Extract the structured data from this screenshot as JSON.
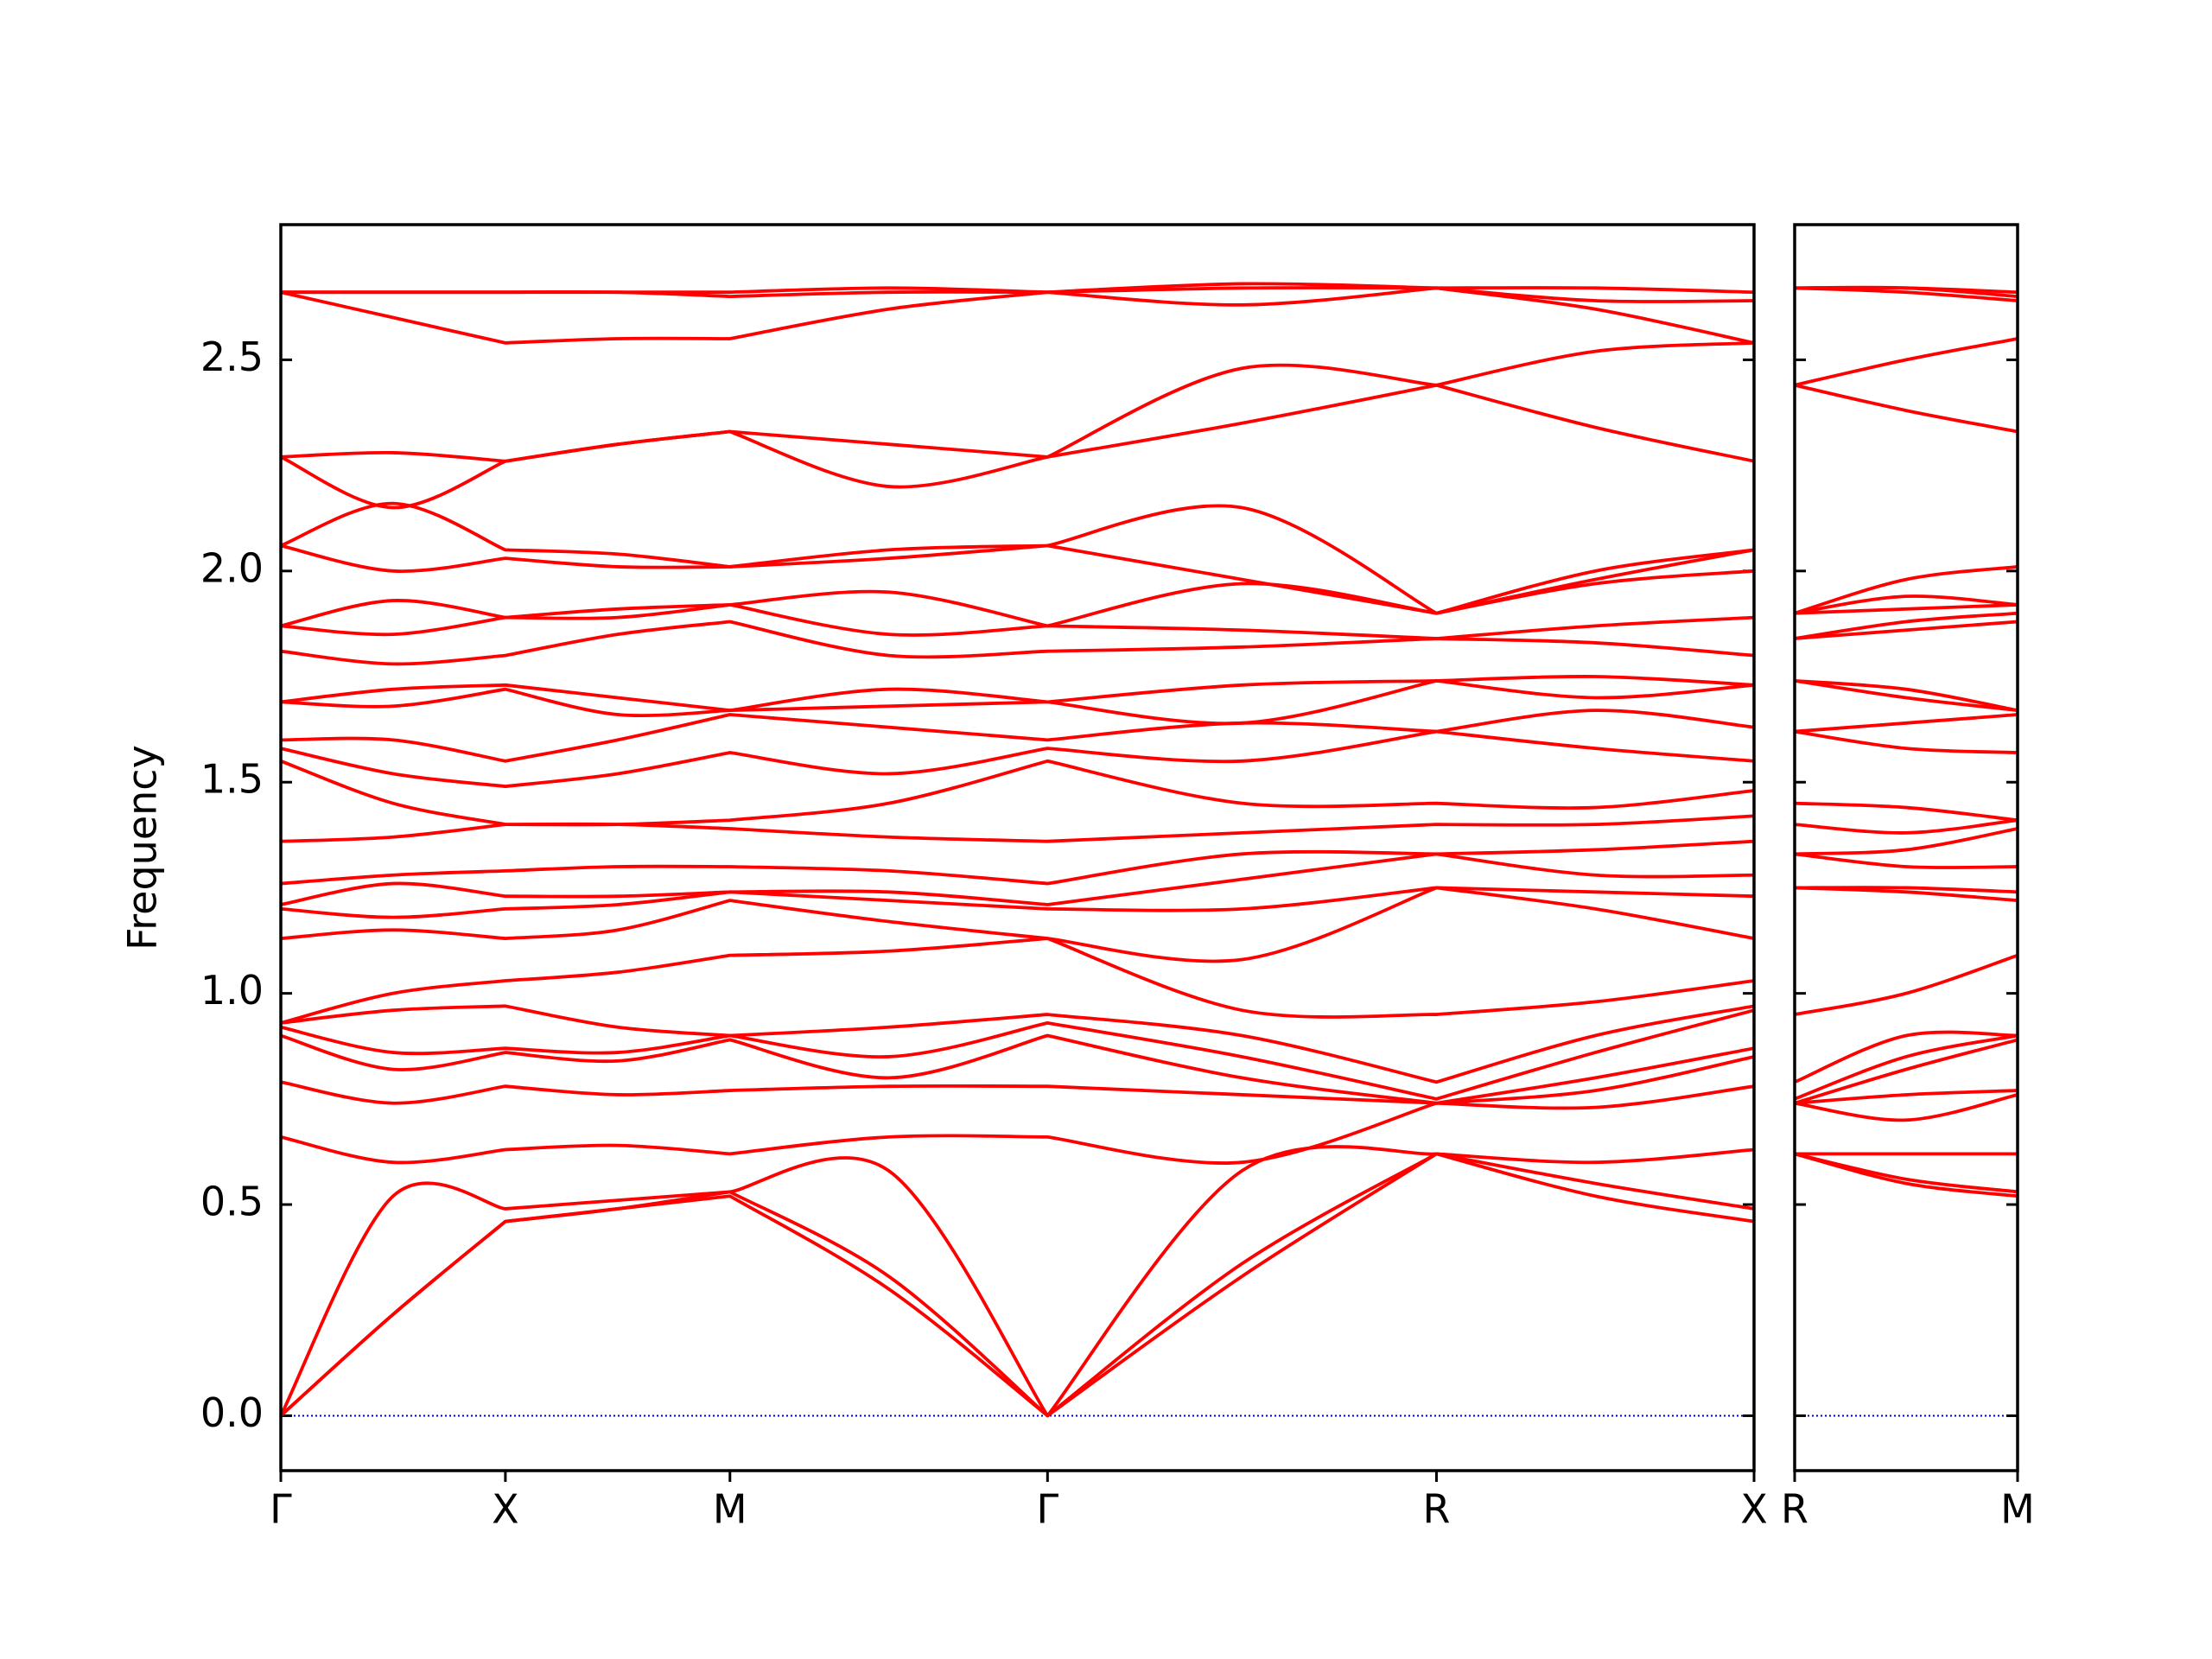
{
  "chart_data": [
    {
      "type": "line",
      "ylabel": "Frequency",
      "color": "#ff0000",
      "hline": 0,
      "hline_color": "#0000cd",
      "x": [
        0,
        0.25,
        0.5,
        0.75,
        1.0,
        1.3536,
        1.7071,
        2.1401,
        2.5731,
        2.9267,
        3.2802
      ],
      "xlim": [
        0,
        3.2802
      ],
      "xticks": [
        {
          "value": 0,
          "label": "Γ"
        },
        {
          "value": 0.5,
          "label": "X"
        },
        {
          "value": 1.0,
          "label": "M"
        },
        {
          "value": 1.7071,
          "label": "Γ"
        },
        {
          "value": 2.5731,
          "label": "R"
        },
        {
          "value": 3.2802,
          "label": "X"
        }
      ],
      "ylim": [
        -0.13,
        2.82
      ],
      "yticks": [
        {
          "value": 0,
          "label": "0.0"
        },
        0.5,
        {
          "value": 1,
          "label": "1.0"
        },
        1.5,
        {
          "value": 2,
          "label": "2.0"
        },
        2.5
      ],
      "series": [
        {
          "values": [
            0,
            0.24,
            0.46,
            0.49,
            0.52,
            0.3,
            0,
            0.33,
            0.62,
            0.52,
            0.46
          ]
        },
        {
          "values": [
            0,
            0.24,
            0.46,
            0.49,
            0.53,
            0.33,
            0,
            0.36,
            0.62,
            0.55,
            0.49
          ]
        },
        {
          "values": [
            0,
            0.52,
            0.49,
            0.51,
            0.53,
            0.58,
            0,
            0.58,
            0.62,
            0.6,
            0.63
          ]
        },
        {
          "values": [
            0.66,
            0.6,
            0.63,
            0.64,
            0.62,
            0.66,
            0.66,
            0.6,
            0.74,
            0.73,
            0.78
          ]
        },
        {
          "values": [
            0.79,
            0.74,
            0.78,
            0.76,
            0.77,
            0.78,
            0.78,
            0.76,
            0.74,
            0.77,
            0.85
          ]
        },
        {
          "values": [
            0.9,
            0.82,
            0.86,
            0.84,
            0.89,
            0.8,
            0.9,
            0.8,
            0.74,
            0.8,
            0.87
          ]
        },
        {
          "values": [
            0.92,
            0.86,
            0.87,
            0.86,
            0.9,
            0.85,
            0.93,
            0.85,
            0.75,
            0.86,
            0.96
          ]
        },
        {
          "values": [
            0.93,
            0.96,
            0.97,
            0.92,
            0.9,
            0.92,
            0.95,
            0.9,
            0.79,
            0.9,
            0.97
          ]
        },
        {
          "values": [
            0.93,
            1.0,
            1.03,
            1.05,
            1.09,
            1.1,
            1.13,
            0.96,
            0.95,
            0.98,
            1.03
          ]
        },
        {
          "values": [
            1.13,
            1.15,
            1.13,
            1.15,
            1.22,
            1.17,
            1.13,
            1.08,
            1.25,
            1.2,
            1.13
          ]
        },
        {
          "values": [
            1.2,
            1.18,
            1.2,
            1.21,
            1.24,
            1.22,
            1.2,
            1.2,
            1.25,
            1.24,
            1.23
          ]
        },
        {
          "values": [
            1.21,
            1.26,
            1.23,
            1.23,
            1.24,
            1.24,
            1.21,
            1.27,
            1.33,
            1.28,
            1.28
          ]
        },
        {
          "values": [
            1.26,
            1.28,
            1.29,
            1.3,
            1.3,
            1.29,
            1.26,
            1.33,
            1.33,
            1.34,
            1.36
          ]
        },
        {
          "values": [
            1.36,
            1.37,
            1.4,
            1.4,
            1.39,
            1.37,
            1.36,
            1.38,
            1.4,
            1.4,
            1.42
          ]
        },
        {
          "values": [
            1.55,
            1.45,
            1.4,
            1.4,
            1.41,
            1.45,
            1.55,
            1.45,
            1.45,
            1.44,
            1.48
          ]
        },
        {
          "values": [
            1.58,
            1.52,
            1.49,
            1.52,
            1.57,
            1.52,
            1.58,
            1.55,
            1.62,
            1.58,
            1.55
          ]
        },
        {
          "values": [
            1.6,
            1.6,
            1.55,
            1.6,
            1.66,
            1.63,
            1.6,
            1.64,
            1.62,
            1.67,
            1.63
          ]
        },
        {
          "values": [
            1.69,
            1.68,
            1.72,
            1.66,
            1.67,
            1.68,
            1.69,
            1.64,
            1.74,
            1.7,
            1.73
          ]
        },
        {
          "values": [
            1.69,
            1.72,
            1.73,
            1.7,
            1.67,
            1.72,
            1.69,
            1.73,
            1.74,
            1.75,
            1.73
          ]
        },
        {
          "values": [
            1.81,
            1.78,
            1.8,
            1.85,
            1.88,
            1.8,
            1.81,
            1.82,
            1.84,
            1.83,
            1.8
          ]
        },
        {
          "values": [
            1.87,
            1.85,
            1.89,
            1.89,
            1.92,
            1.85,
            1.87,
            1.86,
            1.84,
            1.87,
            1.89
          ]
        },
        {
          "values": [
            1.87,
            1.93,
            1.89,
            1.91,
            1.92,
            1.95,
            1.87,
            1.97,
            1.9,
            1.97,
            2.0
          ]
        },
        {
          "values": [
            2.06,
            2.0,
            2.03,
            2.01,
            2.01,
            2.03,
            2.06,
            1.98,
            1.9,
            1.98,
            2.05
          ]
        },
        {
          "values": [
            2.06,
            2.16,
            2.05,
            2.04,
            2.01,
            2.05,
            2.06,
            2.15,
            1.9,
            2.0,
            2.05
          ]
        },
        {
          "values": [
            2.27,
            2.15,
            2.26,
            2.3,
            2.33,
            2.2,
            2.27,
            2.35,
            2.44,
            2.52,
            2.54
          ]
        },
        {
          "values": [
            2.27,
            2.28,
            2.26,
            2.3,
            2.33,
            2.3,
            2.27,
            2.48,
            2.44,
            2.34,
            2.26
          ]
        },
        {
          "values": [
            2.66,
            2.6,
            2.54,
            2.55,
            2.55,
            2.62,
            2.66,
            2.63,
            2.67,
            2.62,
            2.54
          ]
        },
        {
          "values": [
            2.66,
            2.66,
            2.66,
            2.66,
            2.65,
            2.66,
            2.66,
            2.67,
            2.67,
            2.64,
            2.64
          ]
        },
        {
          "values": [
            2.66,
            2.66,
            2.66,
            2.66,
            2.66,
            2.67,
            2.66,
            2.68,
            2.67,
            2.67,
            2.66
          ]
        }
      ]
    },
    {
      "type": "line",
      "color": "#ff0000",
      "hline": 0,
      "hline_color": "#0000cd",
      "x": [
        0,
        0.3536,
        0.7071
      ],
      "xlim": [
        0,
        0.7071
      ],
      "xticks": [
        {
          "value": 0,
          "label": "R"
        },
        {
          "value": 0.7071,
          "label": "M"
        }
      ],
      "ylim": [
        -0.13,
        2.82
      ],
      "yticks": [
        0,
        0.5,
        1,
        1.5,
        2,
        2.5
      ],
      "series": [
        {
          "values": [
            0.62,
            0.55,
            0.52
          ]
        },
        {
          "values": [
            0.62,
            0.56,
            0.53
          ]
        },
        {
          "values": [
            0.62,
            0.62,
            0.62
          ]
        },
        {
          "values": [
            0.74,
            0.7,
            0.76
          ]
        },
        {
          "values": [
            0.74,
            0.76,
            0.77
          ]
        },
        {
          "values": [
            0.74,
            0.82,
            0.89
          ]
        },
        {
          "values": [
            0.75,
            0.85,
            0.9
          ]
        },
        {
          "values": [
            0.79,
            0.9,
            0.9
          ]
        },
        {
          "values": [
            0.95,
            1.0,
            1.09
          ]
        },
        {
          "values": [
            1.25,
            1.24,
            1.22
          ]
        },
        {
          "values": [
            1.25,
            1.25,
            1.24
          ]
        },
        {
          "values": [
            1.33,
            1.3,
            1.3
          ]
        },
        {
          "values": [
            1.33,
            1.34,
            1.39
          ]
        },
        {
          "values": [
            1.4,
            1.38,
            1.41
          ]
        },
        {
          "values": [
            1.45,
            1.44,
            1.41
          ]
        },
        {
          "values": [
            1.62,
            1.58,
            1.57
          ]
        },
        {
          "values": [
            1.62,
            1.64,
            1.66
          ]
        },
        {
          "values": [
            1.74,
            1.7,
            1.67
          ]
        },
        {
          "values": [
            1.74,
            1.72,
            1.67
          ]
        },
        {
          "values": [
            1.84,
            1.86,
            1.88
          ]
        },
        {
          "values": [
            1.84,
            1.88,
            1.9
          ]
        },
        {
          "values": [
            1.9,
            1.91,
            1.92
          ]
        },
        {
          "values": [
            1.9,
            1.98,
            2.01
          ]
        },
        {
          "values": [
            1.9,
            1.94,
            1.92
          ]
        },
        {
          "values": [
            2.44,
            2.5,
            2.55
          ]
        },
        {
          "values": [
            2.44,
            2.38,
            2.33
          ]
        },
        {
          "values": [
            2.67,
            2.66,
            2.64
          ]
        },
        {
          "values": [
            2.67,
            2.67,
            2.65
          ]
        },
        {
          "values": [
            2.67,
            2.67,
            2.66
          ]
        }
      ]
    }
  ]
}
